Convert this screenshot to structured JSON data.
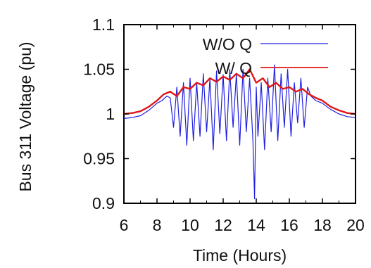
{
  "chart_data": {
    "type": "line",
    "xlabel": "Time (Hours)",
    "ylabel": "Bus 311 Voltage (pu)",
    "xlim": [
      6,
      20
    ],
    "ylim": [
      0.9,
      1.1
    ],
    "xticks": [
      "6",
      "8",
      "10",
      "12",
      "14",
      "16",
      "18",
      "20"
    ],
    "yticks": [
      "0.9",
      "0.95",
      "1",
      "1.05",
      "1.1"
    ],
    "legend_placement": "top-right",
    "series": [
      {
        "name": "W/O Q",
        "color": "#2020e0",
        "x": [
          6.0,
          6.5,
          7.0,
          7.5,
          8.0,
          8.3,
          8.6,
          8.8,
          9.0,
          9.2,
          9.4,
          9.6,
          9.8,
          10.0,
          10.2,
          10.4,
          10.6,
          10.8,
          11.0,
          11.2,
          11.4,
          11.6,
          11.8,
          12.0,
          12.2,
          12.4,
          12.6,
          12.8,
          13.0,
          13.2,
          13.4,
          13.6,
          13.8,
          13.9,
          14.0,
          14.1,
          14.3,
          14.5,
          14.7,
          14.9,
          15.1,
          15.3,
          15.5,
          15.7,
          15.9,
          16.1,
          16.3,
          16.5,
          16.7,
          16.9,
          17.1,
          17.3,
          17.6,
          18.0,
          18.5,
          19.0,
          19.5,
          20.0
        ],
        "y": [
          0.995,
          0.996,
          0.998,
          1.004,
          1.012,
          1.015,
          1.02,
          1.018,
          0.985,
          1.03,
          0.975,
          1.035,
          0.965,
          1.04,
          0.97,
          1.035,
          0.975,
          1.045,
          0.98,
          1.04,
          0.96,
          1.048,
          0.978,
          1.044,
          0.97,
          1.05,
          0.985,
          1.045,
          0.965,
          1.05,
          0.98,
          1.04,
          0.97,
          0.905,
          1.03,
          0.975,
          1.035,
          0.96,
          1.04,
          0.98,
          1.055,
          0.97,
          1.045,
          0.985,
          1.05,
          0.975,
          1.035,
          0.99,
          1.04,
          0.985,
          1.03,
          1.02,
          1.015,
          1.012,
          1.005,
          1.0,
          0.997,
          0.996
        ]
      },
      {
        "name": "W/ Q",
        "color": "#e01818",
        "x": [
          6.0,
          6.5,
          7.0,
          7.5,
          8.0,
          8.4,
          8.8,
          9.2,
          9.6,
          10.0,
          10.4,
          10.8,
          11.2,
          11.6,
          12.0,
          12.4,
          12.8,
          13.2,
          13.6,
          14.0,
          14.4,
          14.8,
          15.2,
          15.6,
          16.0,
          16.4,
          16.8,
          17.2,
          17.6,
          18.0,
          18.5,
          19.0,
          19.5,
          20.0
        ],
        "y": [
          1.0,
          1.001,
          1.003,
          1.008,
          1.015,
          1.022,
          1.025,
          1.02,
          1.03,
          1.028,
          1.035,
          1.032,
          1.04,
          1.036,
          1.042,
          1.038,
          1.045,
          1.04,
          1.05,
          1.035,
          1.04,
          1.03,
          1.035,
          1.028,
          1.03,
          1.025,
          1.028,
          1.022,
          1.018,
          1.015,
          1.008,
          1.004,
          1.001,
          1.0
        ]
      }
    ]
  }
}
